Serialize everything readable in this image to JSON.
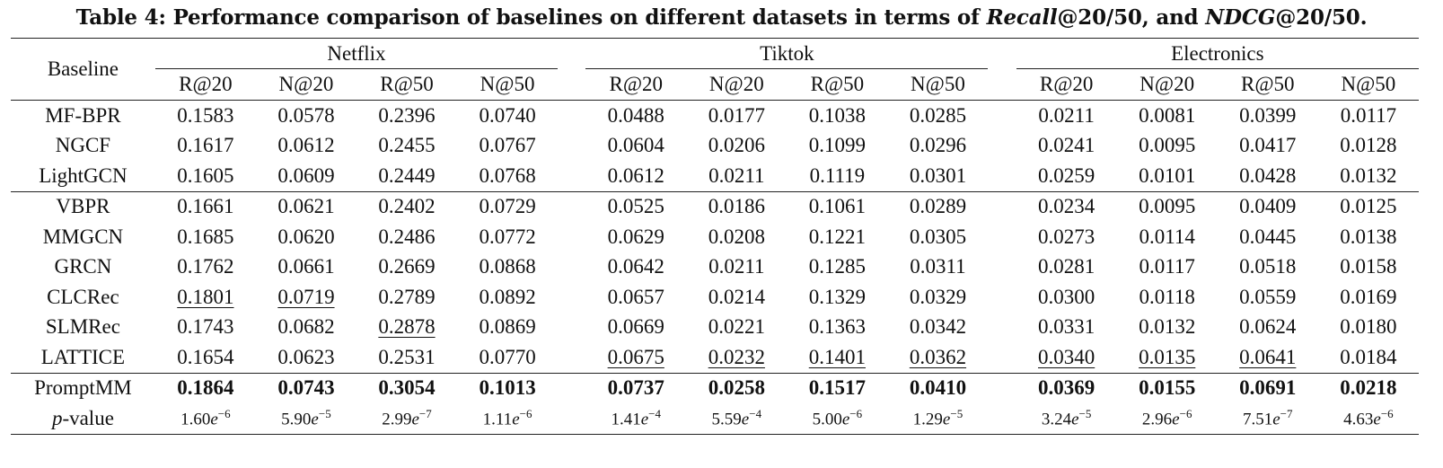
{
  "caption": {
    "prefix": "Table 4: Performance comparison of baselines on different datasets in terms of ",
    "metric1": "Recall",
    "mid": "@20/50, and ",
    "metric2": "NDCG",
    "suffix": "@20/50."
  },
  "header": {
    "baseline_label": "Baseline",
    "datasets": [
      "Netflix",
      "Tiktok",
      "Electronics"
    ],
    "metrics": [
      "R@20",
      "N@20",
      "R@50",
      "N@50"
    ]
  },
  "groups": [
    {
      "rows": [
        {
          "name": "MF-BPR",
          "values": [
            "0.1583",
            "0.0578",
            "0.2396",
            "0.0740",
            "0.0488",
            "0.0177",
            "0.1038",
            "0.0285",
            "0.0211",
            "0.0081",
            "0.0399",
            "0.0117"
          ],
          "underline": []
        },
        {
          "name": "NGCF",
          "values": [
            "0.1617",
            "0.0612",
            "0.2455",
            "0.0767",
            "0.0604",
            "0.0206",
            "0.1099",
            "0.0296",
            "0.0241",
            "0.0095",
            "0.0417",
            "0.0128"
          ],
          "underline": []
        },
        {
          "name": "LightGCN",
          "values": [
            "0.1605",
            "0.0609",
            "0.2449",
            "0.0768",
            "0.0612",
            "0.0211",
            "0.1119",
            "0.0301",
            "0.0259",
            "0.0101",
            "0.0428",
            "0.0132"
          ],
          "underline": []
        }
      ]
    },
    {
      "rows": [
        {
          "name": "VBPR",
          "values": [
            "0.1661",
            "0.0621",
            "0.2402",
            "0.0729",
            "0.0525",
            "0.0186",
            "0.1061",
            "0.0289",
            "0.0234",
            "0.0095",
            "0.0409",
            "0.0125"
          ],
          "underline": []
        },
        {
          "name": "MMGCN",
          "values": [
            "0.1685",
            "0.0620",
            "0.2486",
            "0.0772",
            "0.0629",
            "0.0208",
            "0.1221",
            "0.0305",
            "0.0273",
            "0.0114",
            "0.0445",
            "0.0138"
          ],
          "underline": []
        },
        {
          "name": "GRCN",
          "values": [
            "0.1762",
            "0.0661",
            "0.2669",
            "0.0868",
            "0.0642",
            "0.0211",
            "0.1285",
            "0.0311",
            "0.0281",
            "0.0117",
            "0.0518",
            "0.0158"
          ],
          "underline": []
        },
        {
          "name": "CLCRec",
          "values": [
            "0.1801",
            "0.0719",
            "0.2789",
            "0.0892",
            "0.0657",
            "0.0214",
            "0.1329",
            "0.0329",
            "0.0300",
            "0.0118",
            "0.0559",
            "0.0169"
          ],
          "underline": [
            0,
            1
          ]
        },
        {
          "name": "SLMRec",
          "values": [
            "0.1743",
            "0.0682",
            "0.2878",
            "0.0869",
            "0.0669",
            "0.0221",
            "0.1363",
            "0.0342",
            "0.0331",
            "0.0132",
            "0.0624",
            "0.0180"
          ],
          "underline": [
            2
          ]
        },
        {
          "name": "LATTICE",
          "values": [
            "0.1654",
            "0.0623",
            "0.2531",
            "0.0770",
            "0.0675",
            "0.0232",
            "0.1401",
            "0.0362",
            "0.0340",
            "0.0135",
            "0.0641",
            "0.0184"
          ],
          "underline": [
            4,
            5,
            6,
            7,
            8,
            9,
            10
          ]
        }
      ]
    }
  ],
  "ours": {
    "name": "PromptMM",
    "values": [
      "0.1864",
      "0.0743",
      "0.3054",
      "0.1013",
      "0.0737",
      "0.0258",
      "0.1517",
      "0.0410",
      "0.0369",
      "0.0155",
      "0.0691",
      "0.0218"
    ]
  },
  "pvalue": {
    "label_italic": "p",
    "label_rest": "-value",
    "mantissas": [
      "1.60",
      "5.90",
      "2.99",
      "1.11",
      "1.41",
      "5.59",
      "5.00",
      "1.29",
      "3.24",
      "2.96",
      "7.51",
      "4.63"
    ],
    "base": "e",
    "exponents": [
      "−6",
      "−5",
      "−7",
      "−6",
      "−4",
      "−4",
      "−6",
      "−5",
      "−5",
      "−6",
      "−7",
      "−6"
    ]
  }
}
